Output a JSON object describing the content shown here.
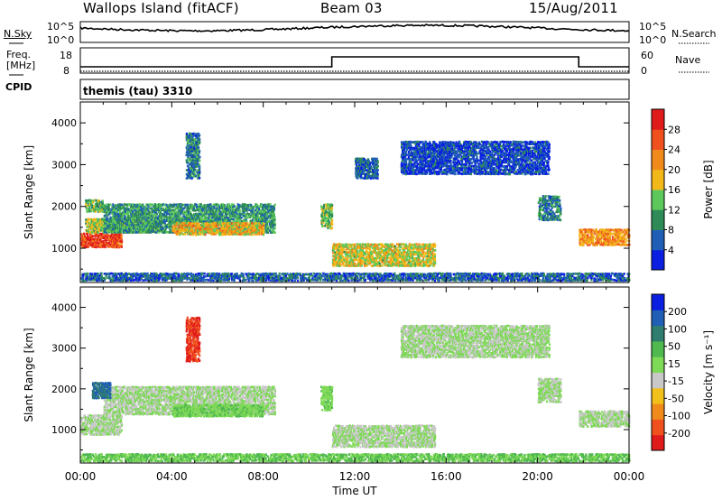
{
  "header": {
    "station": "Wallops Island (fitACF)",
    "beam": "Beam 03",
    "date": "15/Aug/2011"
  },
  "noise_panel": {
    "left_label": "N.Sky",
    "left_ticks": [
      "10^5",
      "10^0"
    ],
    "right_ticks": [
      "10^5",
      "10^0"
    ],
    "right_label": "N.Search"
  },
  "freq_panel": {
    "left_label_line1": "Freq.",
    "left_label_line2": "[MHz]",
    "left_ticks": [
      "18",
      "8"
    ],
    "right_ticks": [
      "60",
      "0"
    ],
    "right_label": "Nave"
  },
  "cpid_panel": {
    "left_label": "CPID",
    "program": "themis (tau) 3310"
  },
  "colors": {
    "power_scale": [
      "#0a1fe0",
      "#1f5fb5",
      "#2e8b57",
      "#5cc85c",
      "#f2b81a",
      "#f08a1a",
      "#f0501e",
      "#e01b1b"
    ],
    "velocity_scale": [
      "#e01b1b",
      "#f0501e",
      "#f08a1a",
      "#f2c01a",
      "#c8c8c8",
      "#7ed957",
      "#4fb84f",
      "#2e7d6e",
      "#1f5fb5",
      "#0a1fe0"
    ]
  },
  "chart_data": [
    {
      "type": "heatmap",
      "name_label": "Slant Range [km]",
      "xlabel": "Time UT",
      "ylabel": "Slant Range [km]",
      "x_range_hours": [
        0,
        24
      ],
      "x_ticks": [
        "00:00",
        "04:00",
        "08:00",
        "12:00",
        "16:00",
        "20:00",
        "00:00"
      ],
      "ylim": [
        180,
        4500
      ],
      "y_ticks": [
        1000,
        2000,
        3000,
        4000
      ],
      "colorbar_label": "Power [dB]",
      "colorbar_ticks": [
        4,
        8,
        12,
        16,
        20,
        24,
        28
      ],
      "colorbar_range": [
        0,
        30
      ],
      "echo_regions": [
        {
          "t": [
            0.0,
            1.8
          ],
          "r": [
            1050,
            1400
          ],
          "value": 26
        },
        {
          "t": [
            0.2,
            3.5
          ],
          "r": [
            1400,
            1750
          ],
          "value": 14
        },
        {
          "t": [
            1.0,
            8.5
          ],
          "r": [
            1400,
            2100
          ],
          "value": 10
        },
        {
          "t": [
            4.0,
            8.0
          ],
          "r": [
            1350,
            1650
          ],
          "value": 18
        },
        {
          "t": [
            4.6,
            5.2
          ],
          "r": [
            2700,
            3800
          ],
          "value": 8
        },
        {
          "t": [
            0.2,
            1.0
          ],
          "r": [
            1900,
            2200
          ],
          "value": 12
        },
        {
          "t": [
            10.5,
            11.0
          ],
          "r": [
            1500,
            2100
          ],
          "value": 14
        },
        {
          "t": [
            11.0,
            15.5
          ],
          "r": [
            600,
            1150
          ],
          "value": 16
        },
        {
          "t": [
            12.0,
            13.0
          ],
          "r": [
            2700,
            3200
          ],
          "value": 6
        },
        {
          "t": [
            14.0,
            20.5
          ],
          "r": [
            2800,
            3600
          ],
          "value": 4
        },
        {
          "t": [
            20.0,
            21.0
          ],
          "r": [
            1700,
            2300
          ],
          "value": 8
        },
        {
          "t": [
            21.8,
            24.0
          ],
          "r": [
            1100,
            1500
          ],
          "value": 20
        },
        {
          "t": [
            0.0,
            24.0
          ],
          "r": [
            250,
            450
          ],
          "value": 6
        }
      ]
    },
    {
      "type": "heatmap",
      "xlabel": "Time UT",
      "ylabel": "Slant Range [km]",
      "x_range_hours": [
        0,
        24
      ],
      "x_ticks": [
        "00:00",
        "04:00",
        "08:00",
        "12:00",
        "16:00",
        "20:00",
        "00:00"
      ],
      "ylim": [
        180,
        4500
      ],
      "y_ticks": [
        1000,
        2000,
        3000,
        4000
      ],
      "colorbar_label": "Velocity [m s⁻¹]",
      "colorbar_ticks": [
        "-200",
        "-100",
        "-50",
        "-15",
        "15",
        "50",
        "100",
        "200"
      ],
      "colorbar_range": [
        -250,
        250
      ],
      "echo_regions": [
        {
          "t": [
            0.0,
            1.8
          ],
          "r": [
            900,
            1400
          ],
          "value": 0
        },
        {
          "t": [
            1.0,
            8.5
          ],
          "r": [
            1400,
            2100
          ],
          "value": 0
        },
        {
          "t": [
            4.0,
            8.0
          ],
          "r": [
            1350,
            1650
          ],
          "value": 40
        },
        {
          "t": [
            0.5,
            1.3
          ],
          "r": [
            1800,
            2200
          ],
          "value": 150
        },
        {
          "t": [
            4.6,
            5.2
          ],
          "r": [
            2700,
            3800
          ],
          "value": -200
        },
        {
          "t": [
            10.5,
            11.0
          ],
          "r": [
            1500,
            2100
          ],
          "value": 30
        },
        {
          "t": [
            11.0,
            15.5
          ],
          "r": [
            600,
            1150
          ],
          "value": 0
        },
        {
          "t": [
            14.0,
            20.5
          ],
          "r": [
            2800,
            3600
          ],
          "value": 0
        },
        {
          "t": [
            20.0,
            21.0
          ],
          "r": [
            1700,
            2300
          ],
          "value": 0
        },
        {
          "t": [
            21.8,
            24.0
          ],
          "r": [
            1100,
            1500
          ],
          "value": 0
        },
        {
          "t": [
            0.0,
            24.0
          ],
          "r": [
            250,
            450
          ],
          "value": 50
        }
      ]
    }
  ]
}
